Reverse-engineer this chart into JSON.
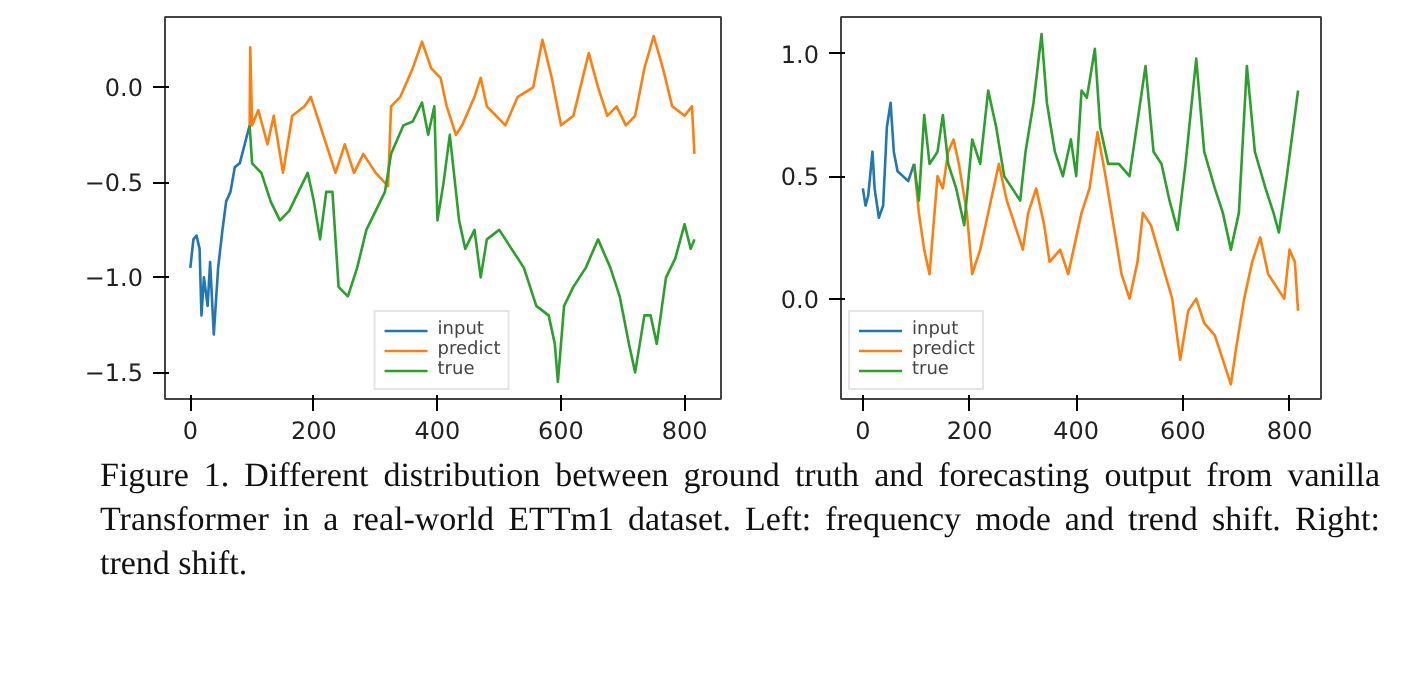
{
  "chart_data": [
    {
      "type": "line",
      "xlim": [
        -41,
        859
      ],
      "ylim": [
        -1.64,
        0.37
      ],
      "xticks": [
        0,
        200,
        400,
        600,
        800
      ],
      "yticks": [
        {
          "value": -1.5,
          "label": "−1.5"
        },
        {
          "value": -1.0,
          "label": "−1.0"
        },
        {
          "value": -0.5,
          "label": "−0.5"
        },
        {
          "value": 0.0,
          "label": "0.0"
        }
      ],
      "legend": "bottom",
      "line_style": "solid",
      "marker": "none",
      "annotations": [
        "Figure 1. Different distribution between ground truth and forecasting output from vanilla Transformer in a real-world ETTm1 dataset. Left: frequency mode and trend shift. Right: trend shift."
      ],
      "series": [
        {
          "name": "input",
          "color": "#1f77b4",
          "x": [
            0,
            5,
            10,
            15,
            18,
            22,
            28,
            32,
            38,
            45,
            52,
            58,
            65,
            72,
            80,
            88,
            96
          ],
          "values": [
            -0.95,
            -0.8,
            -0.78,
            -0.85,
            -1.2,
            -1.0,
            -1.15,
            -0.92,
            -1.3,
            -0.95,
            -0.75,
            -0.6,
            -0.55,
            -0.42,
            -0.4,
            -0.3,
            -0.2
          ]
        },
        {
          "name": "predict",
          "color": "#ff7f0e",
          "x": [
            96,
            97,
            100,
            110,
            125,
            135,
            150,
            165,
            185,
            195,
            210,
            220,
            235,
            250,
            265,
            280,
            300,
            320,
            325,
            340,
            360,
            375,
            390,
            405,
            415,
            430,
            440,
            460,
            470,
            480,
            495,
            510,
            530,
            555,
            570,
            585,
            600,
            620,
            645,
            660,
            675,
            690,
            705,
            720,
            735,
            750,
            765,
            780,
            800,
            812,
            816
          ],
          "values": [
            -0.2,
            0.21,
            -0.2,
            -0.12,
            -0.3,
            -0.15,
            -0.45,
            -0.15,
            -0.1,
            -0.05,
            -0.2,
            -0.3,
            -0.45,
            -0.3,
            -0.45,
            -0.35,
            -0.45,
            -0.52,
            -0.1,
            -0.05,
            0.1,
            0.24,
            0.1,
            0.05,
            -0.1,
            -0.25,
            -0.2,
            -0.05,
            0.05,
            -0.1,
            -0.15,
            -0.2,
            -0.05,
            0.0,
            0.25,
            0.05,
            -0.2,
            -0.15,
            0.18,
            0.0,
            -0.15,
            -0.1,
            -0.2,
            -0.15,
            0.1,
            0.27,
            0.1,
            -0.1,
            -0.15,
            -0.1,
            -0.35
          ]
        },
        {
          "name": "true",
          "color": "#2ca02c",
          "x": [
            96,
            100,
            115,
            130,
            145,
            160,
            175,
            190,
            200,
            210,
            220,
            230,
            240,
            255,
            270,
            285,
            300,
            315,
            325,
            345,
            360,
            375,
            385,
            395,
            400,
            410,
            420,
            435,
            445,
            460,
            470,
            480,
            500,
            520,
            540,
            560,
            580,
            590,
            595,
            605,
            620,
            640,
            660,
            680,
            695,
            710,
            720,
            735,
            745,
            755,
            770,
            785,
            800,
            810,
            816
          ],
          "values": [
            -0.2,
            -0.4,
            -0.45,
            -0.6,
            -0.7,
            -0.65,
            -0.55,
            -0.45,
            -0.6,
            -0.8,
            -0.55,
            -0.55,
            -1.05,
            -1.1,
            -0.95,
            -0.75,
            -0.65,
            -0.55,
            -0.35,
            -0.2,
            -0.18,
            -0.08,
            -0.25,
            -0.1,
            -0.7,
            -0.5,
            -0.25,
            -0.7,
            -0.85,
            -0.75,
            -1.0,
            -0.8,
            -0.75,
            -0.85,
            -0.95,
            -1.15,
            -1.2,
            -1.35,
            -1.55,
            -1.15,
            -1.05,
            -0.95,
            -0.8,
            -0.95,
            -1.1,
            -1.35,
            -1.5,
            -1.2,
            -1.2,
            -1.35,
            -1.0,
            -0.9,
            -0.72,
            -0.85,
            -0.8
          ]
        }
      ]
    },
    {
      "type": "line",
      "xlim": [
        -41,
        859
      ],
      "ylim": [
        -0.41,
        1.15
      ],
      "xticks": [
        0,
        200,
        400,
        600,
        800
      ],
      "yticks": [
        {
          "value": 0.0,
          "label": "0.0"
        },
        {
          "value": 0.5,
          "label": "0.5"
        },
        {
          "value": 1.0,
          "label": "1.0"
        }
      ],
      "legend": "bottom left",
      "line_style": "solid",
      "marker": "none",
      "series": [
        {
          "name": "input",
          "color": "#1f77b4",
          "x": [
            0,
            5,
            10,
            18,
            22,
            30,
            38,
            45,
            52,
            58,
            65,
            75,
            85,
            96
          ],
          "values": [
            0.45,
            0.38,
            0.42,
            0.6,
            0.45,
            0.33,
            0.38,
            0.7,
            0.8,
            0.6,
            0.52,
            0.5,
            0.48,
            0.55
          ]
        },
        {
          "name": "predict",
          "color": "#ff7f0e",
          "x": [
            96,
            105,
            115,
            125,
            140,
            150,
            160,
            170,
            180,
            195,
            205,
            220,
            240,
            255,
            270,
            285,
            300,
            310,
            325,
            340,
            350,
            370,
            385,
            395,
            410,
            425,
            440,
            455,
            470,
            485,
            500,
            515,
            525,
            540,
            560,
            580,
            595,
            610,
            625,
            640,
            660,
            675,
            690,
            700,
            715,
            730,
            745,
            760,
            775,
            790,
            800,
            810,
            816
          ],
          "values": [
            0.55,
            0.35,
            0.2,
            0.1,
            0.5,
            0.45,
            0.6,
            0.65,
            0.55,
            0.35,
            0.1,
            0.2,
            0.4,
            0.55,
            0.4,
            0.3,
            0.2,
            0.35,
            0.45,
            0.3,
            0.15,
            0.2,
            0.1,
            0.2,
            0.35,
            0.45,
            0.68,
            0.5,
            0.3,
            0.1,
            0.0,
            0.15,
            0.35,
            0.3,
            0.15,
            0.0,
            -0.25,
            -0.05,
            0.0,
            -0.1,
            -0.15,
            -0.25,
            -0.35,
            -0.2,
            0.0,
            0.15,
            0.25,
            0.1,
            0.05,
            0.0,
            0.2,
            0.15,
            -0.05
          ]
        },
        {
          "name": "true",
          "color": "#2ca02c",
          "x": [
            96,
            105,
            115,
            125,
            140,
            150,
            160,
            175,
            190,
            205,
            220,
            235,
            250,
            265,
            280,
            295,
            305,
            320,
            335,
            345,
            360,
            375,
            390,
            400,
            410,
            420,
            435,
            445,
            460,
            480,
            500,
            510,
            530,
            545,
            560,
            575,
            590,
            605,
            625,
            640,
            660,
            675,
            690,
            705,
            720,
            735,
            755,
            770,
            780,
            795,
            816
          ],
          "values": [
            0.55,
            0.4,
            0.75,
            0.55,
            0.6,
            0.75,
            0.55,
            0.45,
            0.3,
            0.65,
            0.55,
            0.85,
            0.7,
            0.5,
            0.45,
            0.4,
            0.6,
            0.8,
            1.08,
            0.8,
            0.6,
            0.5,
            0.65,
            0.5,
            0.85,
            0.82,
            1.02,
            0.7,
            0.55,
            0.55,
            0.5,
            0.65,
            0.95,
            0.6,
            0.55,
            0.4,
            0.28,
            0.55,
            0.98,
            0.6,
            0.45,
            0.35,
            0.2,
            0.35,
            0.95,
            0.6,
            0.45,
            0.35,
            0.27,
            0.5,
            0.85
          ]
        }
      ]
    }
  ]
}
